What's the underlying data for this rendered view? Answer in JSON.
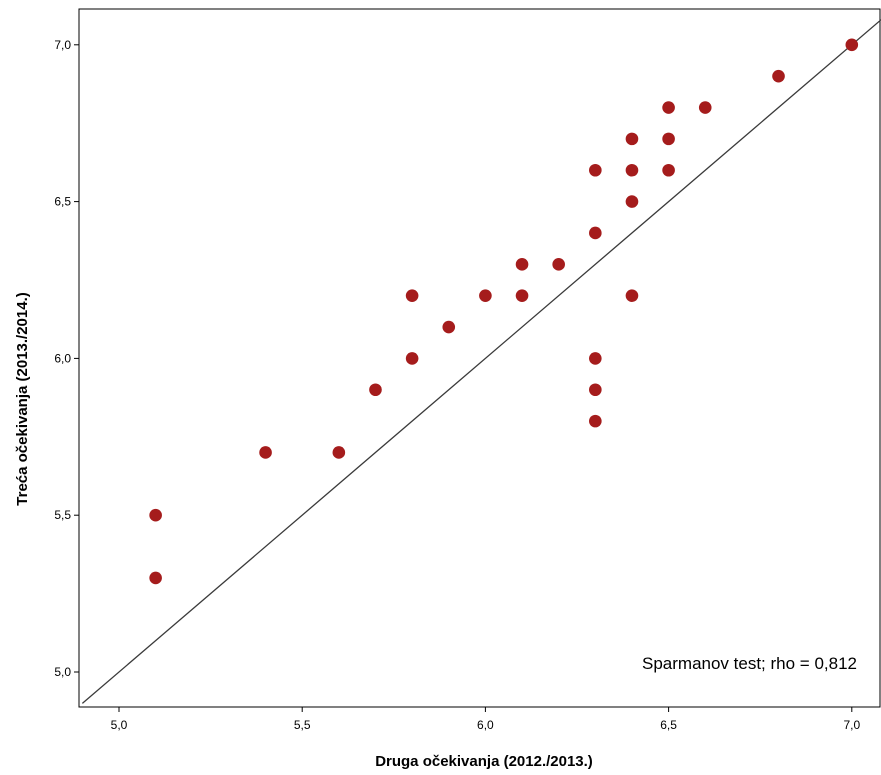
{
  "chart_data": {
    "type": "scatter",
    "title": "",
    "xlabel": "Druga očekivanja (2012./2013.)",
    "ylabel": "Treća očekivanja (2013./2014.)",
    "xlim": [
      4.9,
      7.08
    ],
    "ylim": [
      4.89,
      7.11
    ],
    "x_ticks": [
      5.0,
      5.5,
      6.0,
      6.5,
      7.0
    ],
    "x_tick_labels": [
      "5,0",
      "5,5",
      "6,0",
      "6,5",
      "7,0"
    ],
    "y_ticks": [
      5.0,
      5.5,
      6.0,
      6.5,
      7.0
    ],
    "y_tick_labels": [
      "5,0",
      "5,5",
      "6,0",
      "6,5",
      "7,0"
    ],
    "grid": false,
    "point_color": "#a51c1c",
    "reference_line": {
      "type": "identity",
      "color": "#3a3a3a"
    },
    "annotation": "Sparmanov test; rho = 0,812",
    "points": [
      {
        "x": 5.1,
        "y": 5.5
      },
      {
        "x": 5.1,
        "y": 5.3
      },
      {
        "x": 5.4,
        "y": 5.7
      },
      {
        "x": 5.6,
        "y": 5.7
      },
      {
        "x": 5.7,
        "y": 5.9
      },
      {
        "x": 5.8,
        "y": 6.2
      },
      {
        "x": 5.8,
        "y": 6.0
      },
      {
        "x": 5.9,
        "y": 6.1
      },
      {
        "x": 6.0,
        "y": 6.2
      },
      {
        "x": 6.1,
        "y": 6.3
      },
      {
        "x": 6.1,
        "y": 6.2
      },
      {
        "x": 6.2,
        "y": 6.3
      },
      {
        "x": 6.3,
        "y": 6.6
      },
      {
        "x": 6.3,
        "y": 6.4
      },
      {
        "x": 6.3,
        "y": 6.0
      },
      {
        "x": 6.3,
        "y": 5.9
      },
      {
        "x": 6.3,
        "y": 5.8
      },
      {
        "x": 6.4,
        "y": 6.7
      },
      {
        "x": 6.4,
        "y": 6.6
      },
      {
        "x": 6.4,
        "y": 6.5
      },
      {
        "x": 6.4,
        "y": 6.2
      },
      {
        "x": 6.5,
        "y": 6.8
      },
      {
        "x": 6.5,
        "y": 6.7
      },
      {
        "x": 6.5,
        "y": 6.6
      },
      {
        "x": 6.6,
        "y": 6.8
      },
      {
        "x": 6.8,
        "y": 6.9
      },
      {
        "x": 7.0,
        "y": 7.0
      }
    ]
  }
}
